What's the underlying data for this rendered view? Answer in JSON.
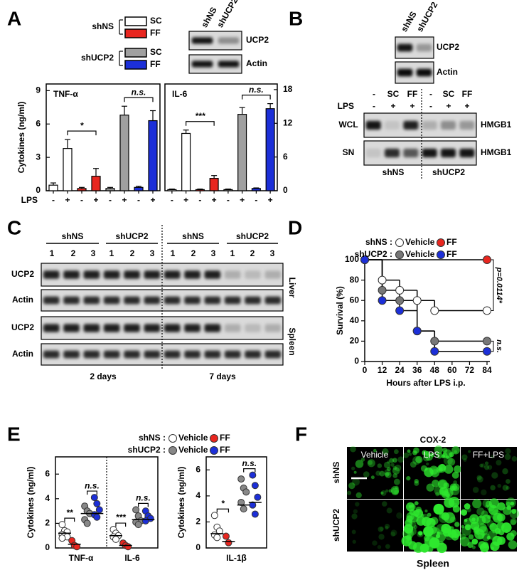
{
  "panels": {
    "A": {
      "letter": "A",
      "legend": [
        {
          "group": "shNS",
          "items": [
            {
              "name": "SC",
              "color": "#ffffff"
            },
            {
              "name": "FF",
              "color": "#e8261f"
            }
          ]
        },
        {
          "group": "shUCP2",
          "items": [
            {
              "name": "SC",
              "color": "#a0a0a0"
            },
            {
              "name": "FF",
              "color": "#1c2fd8"
            }
          ]
        }
      ],
      "blot": {
        "lanes": [
          "shNS",
          "shUCP2"
        ],
        "rows": [
          "UCP2",
          "Actin"
        ]
      }
    },
    "B": {
      "letter": "B",
      "blot": {
        "lanes": [
          "shNS",
          "shUCP2"
        ],
        "rows": [
          "UCP2",
          "Actin"
        ]
      },
      "treatment": [
        "-",
        "SC",
        "FF",
        "-",
        "SC",
        "FF"
      ],
      "lps_label": "LPS",
      "lps": [
        "-",
        "+",
        "+",
        "-",
        "+",
        "+"
      ],
      "rows": [
        "WCL",
        "SN"
      ],
      "targets": [
        "HMGB1",
        "HMGB1"
      ],
      "groups": [
        "shNS",
        "shUCP2"
      ]
    },
    "C": {
      "letter": "C",
      "groups": [
        "shNS",
        "shUCP2",
        "shNS",
        "shUCP2"
      ],
      "lanes": [
        1,
        2,
        3,
        1,
        2,
        3,
        1,
        2,
        3,
        1,
        2,
        3
      ],
      "rows": [
        "UCP2",
        "Actin",
        "UCP2",
        "Actin"
      ],
      "tissues": [
        "Liver",
        "Spleen"
      ],
      "times": [
        "2 days",
        "7 days"
      ]
    },
    "D": {
      "letter": "D"
    },
    "E": {
      "letter": "E"
    },
    "F": {
      "letter": "F",
      "title": "COX-2",
      "columns": [
        "Vehicle",
        "LPS",
        "FF+LPS"
      ],
      "rows": [
        "shNS",
        "shUCP2"
      ],
      "tissue": "Spleen"
    }
  },
  "chart_data": [
    {
      "type": "bar",
      "title": "TNF-α",
      "y_label": "Cytokines (ng/ml)",
      "x_label": "LPS",
      "categories": [
        "-",
        "+",
        "-",
        "+",
        "-",
        "+",
        "-",
        "+"
      ],
      "values": [
        0.5,
        3.8,
        0.2,
        1.3,
        0.2,
        6.8,
        0.3,
        6.3
      ],
      "errors": [
        0.2,
        0.8,
        0.1,
        0.7,
        0.1,
        0.8,
        0.1,
        0.9
      ],
      "colors": [
        "#ffffff",
        "#ffffff",
        "#e8261f",
        "#e8261f",
        "#a0a0a0",
        "#a0a0a0",
        "#1c2fd8",
        "#1c2fd8"
      ],
      "ylim": [
        0,
        9.6
      ],
      "yticks": [
        0,
        3,
        6,
        9
      ],
      "annotations": [
        "*",
        "n.s."
      ]
    },
    {
      "type": "bar",
      "title": "IL-6",
      "y_axis": "right",
      "categories": [
        "-",
        "+",
        "-",
        "+",
        "-",
        "+",
        "-",
        "+"
      ],
      "values": [
        0.2,
        10.2,
        0.2,
        2.2,
        0.2,
        13.6,
        0.4,
        14.6
      ],
      "errors": [
        0.1,
        0.6,
        0.1,
        0.5,
        0.1,
        1.2,
        0.1,
        0.9
      ],
      "colors": [
        "#ffffff",
        "#ffffff",
        "#e8261f",
        "#e8261f",
        "#a0a0a0",
        "#a0a0a0",
        "#1c2fd8",
        "#1c2fd8"
      ],
      "ylim": [
        0,
        19
      ],
      "yticks": [
        0,
        6,
        12,
        18
      ],
      "annotations": [
        "***",
        "n.s."
      ]
    },
    {
      "type": "line",
      "x_label": "Hours after LPS i.p.",
      "y_label": "Survival (%)",
      "xlim": [
        0,
        84
      ],
      "xticks": [
        0,
        12,
        24,
        36,
        48,
        60,
        72,
        84
      ],
      "ylim": [
        0,
        100
      ],
      "yticks": [
        0,
        20,
        40,
        60,
        80,
        100
      ],
      "series": [
        {
          "group": "shNS :",
          "name": "Vehicle",
          "color": "#ffffff",
          "x": [
            0,
            12,
            24,
            36,
            48,
            84
          ],
          "values": [
            100,
            80,
            70,
            60,
            50,
            50
          ]
        },
        {
          "group": "shNS :",
          "name": "FF",
          "color": "#e8261f",
          "x": [
            0,
            84
          ],
          "values": [
            100,
            100
          ]
        },
        {
          "group": "shUCP2 :",
          "name": "Vehicle",
          "color": "#777777",
          "x": [
            0,
            12,
            24,
            36,
            48,
            84
          ],
          "values": [
            100,
            70,
            60,
            30,
            20,
            20
          ]
        },
        {
          "group": "shUCP2 :",
          "name": "FF",
          "color": "#1c2fd8",
          "x": [
            0,
            12,
            24,
            36,
            48,
            84
          ],
          "values": [
            100,
            60,
            50,
            30,
            10,
            10
          ]
        }
      ],
      "annotations": [
        "p=0.0114*",
        "n.s."
      ]
    },
    {
      "type": "dot",
      "y_label": "Cytokines (ng/ml)",
      "categories": [
        "TNF-α",
        "IL-6"
      ],
      "ylim": [
        0,
        7.4
      ],
      "yticks": [
        0,
        2,
        4,
        6
      ],
      "series": [
        {
          "group": "shNS :",
          "name": "Vehicle",
          "color": "#ffffff",
          "values": [
            [
              1.9,
              1.4,
              1.3,
              1.1,
              1.0,
              0.9,
              0.8
            ],
            [
              1.5,
              1.2,
              1.0,
              0.9,
              0.7
            ]
          ],
          "means": [
            1.2,
            1.0
          ]
        },
        {
          "group": "shNS :",
          "name": "FF",
          "color": "#e8261f",
          "values": [
            [
              0.6,
              0.2,
              0.1
            ],
            [
              0.4,
              0.2,
              0.1
            ]
          ],
          "means": [
            0.3,
            0.2
          ]
        },
        {
          "group": "shUCP2 :",
          "name": "Vehicle",
          "color": "#888888",
          "values": [
            [
              3.4,
              3.0,
              2.8,
              2.3,
              2.0
            ],
            [
              3.1,
              2.6,
              2.2,
              2.1,
              1.9
            ]
          ],
          "means": [
            2.8,
            2.3
          ]
        },
        {
          "group": "shUCP2 :",
          "name": "FF",
          "color": "#1c2fd8",
          "values": [
            [
              4.1,
              3.6,
              3.1,
              2.7,
              2.5
            ],
            [
              3.0,
              2.6,
              2.4,
              2.2
            ]
          ],
          "means": [
            2.8,
            2.3
          ]
        }
      ],
      "annotations": [
        [
          "**",
          "n.s."
        ],
        [
          "***",
          "n.s."
        ]
      ]
    },
    {
      "type": "dot",
      "y_label": "Cytokines (ng/ml)",
      "categories": [
        "IL-1β"
      ],
      "ylim": [
        0,
        7
      ],
      "yticks": [
        0,
        2,
        4,
        6
      ],
      "series": [
        {
          "color": "#ffffff",
          "values": [
            [
              2.5,
              1.6,
              1.3,
              1.0,
              0.8
            ]
          ],
          "means": [
            1.1
          ]
        },
        {
          "color": "#e8261f",
          "values": [
            [
              0.9,
              0.4
            ]
          ],
          "means": [
            0.5
          ]
        },
        {
          "color": "#888888",
          "values": [
            [
              5.3,
              4.6,
              4.3,
              3.5,
              3.0
            ]
          ],
          "means": [
            3.3
          ]
        },
        {
          "color": "#1c2fd8",
          "values": [
            [
              5.6,
              4.8,
              3.9,
              3.3,
              2.6
            ]
          ],
          "means": [
            3.5
          ]
        }
      ],
      "annotations": [
        [
          "*",
          "n.s."
        ]
      ]
    }
  ]
}
